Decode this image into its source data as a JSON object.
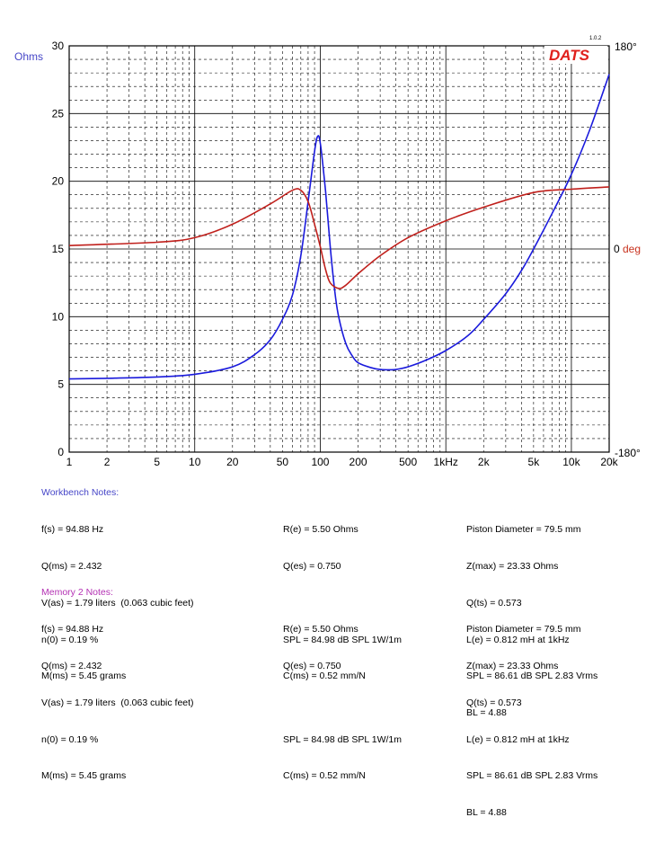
{
  "chart_data": {
    "type": "line",
    "x_scale": "log",
    "xlim": [
      1,
      20000
    ],
    "x_tick_labels": [
      {
        "v": 1,
        "t": "1"
      },
      {
        "v": 2,
        "t": "2"
      },
      {
        "v": 5,
        "t": "5"
      },
      {
        "v": 10,
        "t": "10"
      },
      {
        "v": 20,
        "t": "20"
      },
      {
        "v": 50,
        "t": "50"
      },
      {
        "v": 100,
        "t": "100"
      },
      {
        "v": 200,
        "t": "200"
      },
      {
        "v": 500,
        "t": "500"
      },
      {
        "v": 1000,
        "t": "1kHz"
      },
      {
        "v": 2000,
        "t": "2k"
      },
      {
        "v": 5000,
        "t": "5k"
      },
      {
        "v": 10000,
        "t": "10k"
      },
      {
        "v": 20000,
        "t": "20k"
      }
    ],
    "y_left": {
      "label": "Ohms",
      "range": [
        0,
        30
      ],
      "ticks": [
        "0",
        "5",
        "10",
        "15",
        "20",
        "25",
        "30"
      ]
    },
    "y_right": {
      "range": [
        -180,
        180
      ],
      "ticks": [
        {
          "v": 180,
          "t": "180°"
        },
        {
          "v": 0,
          "t": "0 deg"
        },
        {
          "v": -180,
          "t": "-180°"
        }
      ]
    },
    "grid": true,
    "logo": "DATS",
    "version": "1.0.2",
    "series": [
      {
        "axis": "left",
        "color": "#1a1adc",
        "points": [
          [
            1,
            5.4
          ],
          [
            2,
            5.45
          ],
          [
            5,
            5.55
          ],
          [
            10,
            5.75
          ],
          [
            20,
            6.3
          ],
          [
            30,
            7.2
          ],
          [
            40,
            8.3
          ],
          [
            50,
            9.8
          ],
          [
            60,
            11.6
          ],
          [
            70,
            14.5
          ],
          [
            80,
            18.5
          ],
          [
            90,
            22.2
          ],
          [
            95,
            23.3
          ],
          [
            100,
            22.8
          ],
          [
            110,
            19.3
          ],
          [
            120,
            15.2
          ],
          [
            130,
            12.0
          ],
          [
            140,
            10.0
          ],
          [
            160,
            8.0
          ],
          [
            180,
            7.1
          ],
          [
            200,
            6.6
          ],
          [
            250,
            6.25
          ],
          [
            300,
            6.1
          ],
          [
            350,
            6.08
          ],
          [
            400,
            6.1
          ],
          [
            500,
            6.3
          ],
          [
            700,
            6.8
          ],
          [
            1000,
            7.5
          ],
          [
            1500,
            8.6
          ],
          [
            2000,
            9.8
          ],
          [
            3000,
            11.7
          ],
          [
            4000,
            13.4
          ],
          [
            5000,
            15.0
          ],
          [
            7000,
            17.6
          ],
          [
            10000,
            20.5
          ],
          [
            14000,
            23.8
          ],
          [
            20000,
            27.9
          ]
        ]
      },
      {
        "axis": "right",
        "color": "#c0201c",
        "points": [
          [
            1,
            3
          ],
          [
            5,
            6
          ],
          [
            10,
            10
          ],
          [
            20,
            22
          ],
          [
            40,
            40
          ],
          [
            60,
            52
          ],
          [
            70,
            52
          ],
          [
            80,
            42
          ],
          [
            90,
            22
          ],
          [
            100,
            2
          ],
          [
            110,
            -18
          ],
          [
            120,
            -30
          ],
          [
            140,
            -35
          ],
          [
            160,
            -32
          ],
          [
            200,
            -22
          ],
          [
            300,
            -6
          ],
          [
            500,
            10
          ],
          [
            1000,
            25
          ],
          [
            2000,
            37
          ],
          [
            5000,
            50
          ],
          [
            10000,
            53
          ],
          [
            20000,
            55
          ]
        ]
      }
    ]
  },
  "notes": [
    {
      "header": "Workbench Notes:",
      "header_color": "#4646c8",
      "col1": [
        "f(s) = 94.88 Hz",
        "Q(ms) = 2.432",
        "V(as) = 1.79 liters  (0.063 cubic feet)",
        "n(0) = 0.19 %",
        "M(ms) = 5.45 grams"
      ],
      "col2": [
        "R(e) = 5.50 Ohms",
        "Q(es) = 0.750",
        "",
        "SPL = 84.98 dB SPL 1W/1m",
        "C(ms) = 0.52 mm/N"
      ],
      "col3": [
        "Piston Diameter = 79.5 mm",
        "Z(max) = 23.33 Ohms",
        "Q(ts) = 0.573",
        "L(e) = 0.812 mH at 1kHz",
        "SPL = 86.61 dB SPL 2.83 Vrms",
        "BL = 4.88"
      ]
    },
    {
      "header": "Memory 2 Notes:",
      "header_color": "#b432b4",
      "col1": [
        "f(s) = 94.88 Hz",
        "Q(ms) = 2.432",
        "V(as) = 1.79 liters  (0.063 cubic feet)",
        "n(0) = 0.19 %",
        "M(ms) = 5.45 grams"
      ],
      "col2": [
        "R(e) = 5.50 Ohms",
        "Q(es) = 0.750",
        "",
        "SPL = 84.98 dB SPL 1W/1m",
        "C(ms) = 0.52 mm/N"
      ],
      "col3": [
        "Piston Diameter = 79.5 mm",
        "Z(max) = 23.33 Ohms",
        "Q(ts) = 0.573",
        "L(e) = 0.812 mH at 1kHz",
        "SPL = 86.61 dB SPL 2.83 Vrms",
        "BL = 4.88"
      ]
    }
  ]
}
